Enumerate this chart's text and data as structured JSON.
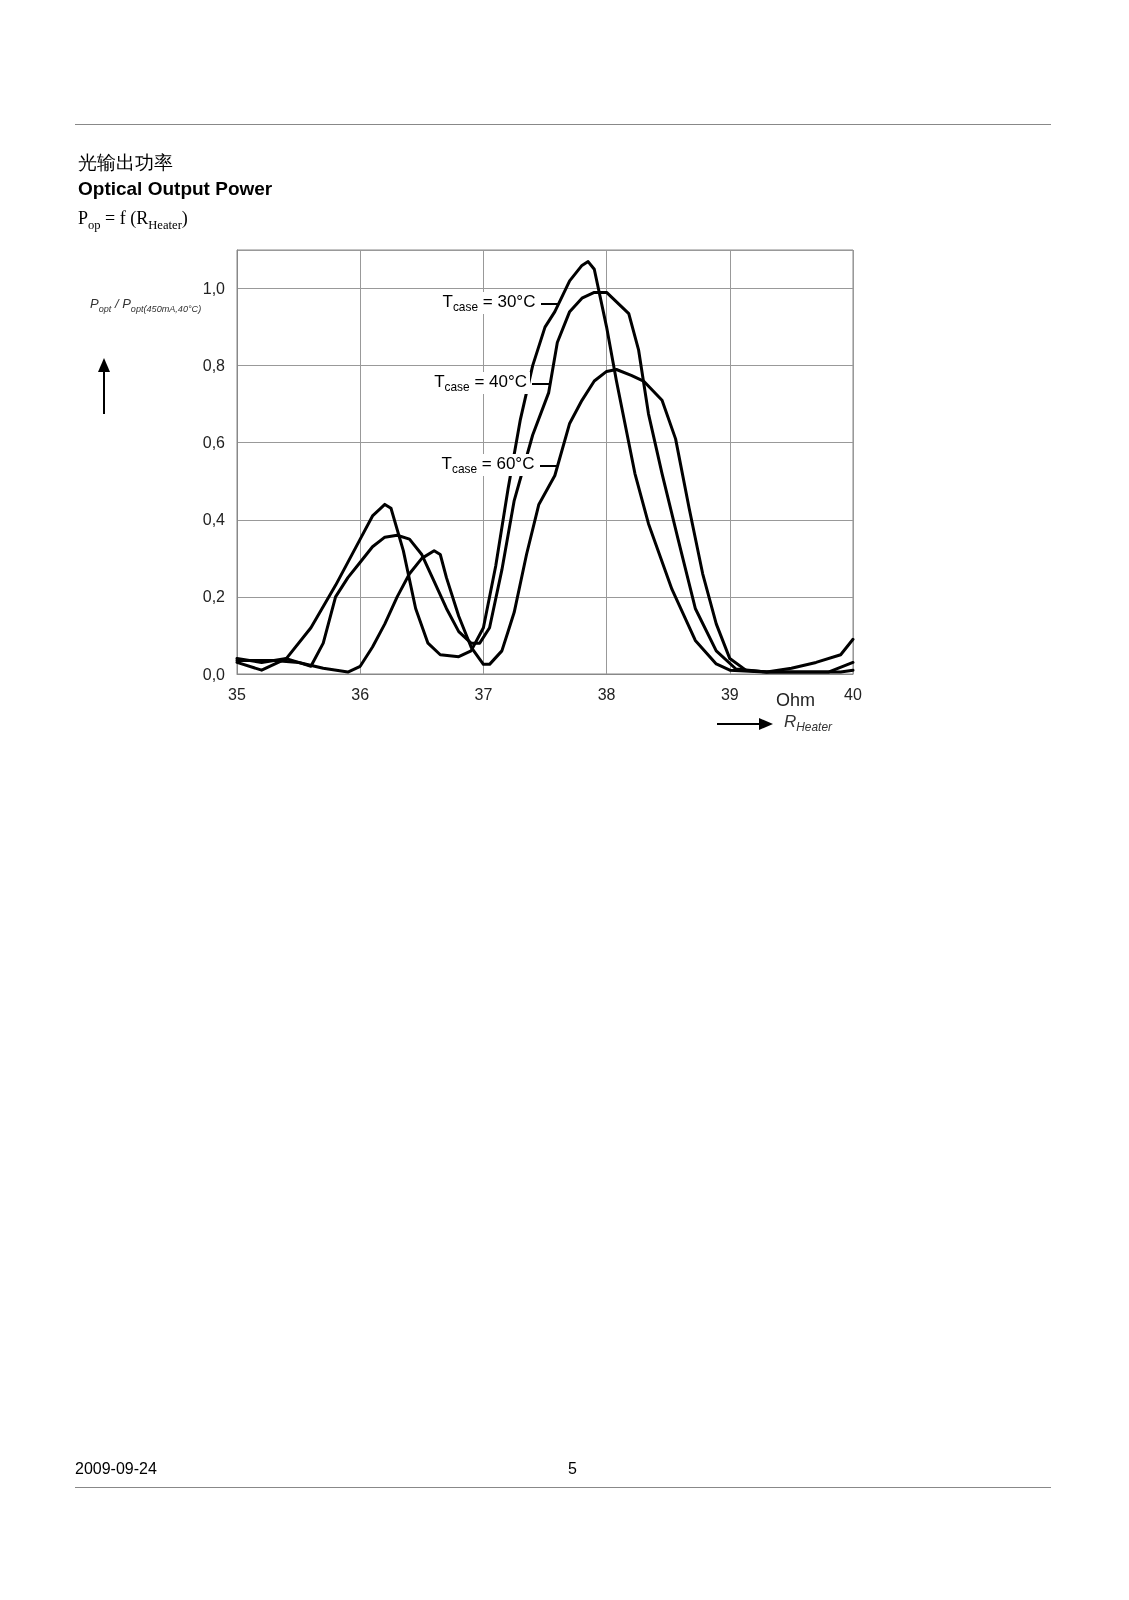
{
  "chart_data": {
    "type": "line",
    "title": "光输出功率",
    "subtitle": "Optical Output Power",
    "xlabel": "R$_{Heater}$",
    "ylabel": "P$_{opt}$ / P$_{opt(450mA,40°C)}$",
    "annotations": [
      "P$_{op}$ = f (R$_{Heater}$)",
      "Ohm",
      "2009-09-24",
      "5"
    ],
    "series": [
      {
        "name": "T$_{case}$ = 30°C",
        "color": "#000000",
        "x": [
          35.0,
          35.2,
          35.4,
          35.6,
          35.8,
          36.0,
          36.1,
          36.2,
          36.25,
          36.35,
          36.45,
          36.55,
          36.65,
          36.8,
          36.9,
          37.0,
          37.1,
          37.2,
          37.3,
          37.4,
          37.5,
          37.58,
          37.7,
          37.8,
          37.85,
          37.9,
          38.0,
          38.08,
          38.23,
          38.34,
          38.53,
          38.72,
          38.89,
          39.0,
          39.3,
          39.5,
          39.7,
          39.9,
          40.0
        ],
        "values": [
          0.03,
          0.01,
          0.04,
          0.12,
          0.23,
          0.35,
          0.41,
          0.44,
          0.43,
          0.32,
          0.17,
          0.08,
          0.05,
          0.045,
          0.06,
          0.12,
          0.28,
          0.48,
          0.66,
          0.8,
          0.9,
          0.94,
          1.02,
          1.06,
          1.07,
          1.05,
          0.9,
          0.76,
          0.52,
          0.39,
          0.22,
          0.087,
          0.026,
          0.01,
          0.005,
          0.015,
          0.03,
          0.05,
          0.09
        ]
      },
      {
        "name": "T$_{case}$ = 40°C",
        "color": "#000000",
        "x": [
          35.0,
          35.3,
          35.5,
          35.6,
          35.7,
          35.8,
          35.9,
          36.0,
          36.1,
          36.2,
          36.3,
          36.4,
          36.5,
          36.6,
          36.7,
          36.8,
          36.9,
          36.97,
          37.05,
          37.15,
          37.25,
          37.4,
          37.53,
          37.6,
          37.7,
          37.8,
          37.9,
          38.0,
          38.18,
          38.26,
          38.34,
          38.45,
          38.58,
          38.72,
          38.89,
          39.05,
          39.3,
          39.6,
          39.8,
          40.0
        ],
        "values": [
          0.035,
          0.035,
          0.03,
          0.02,
          0.08,
          0.2,
          0.25,
          0.29,
          0.33,
          0.355,
          0.36,
          0.35,
          0.31,
          0.24,
          0.17,
          0.11,
          0.08,
          0.08,
          0.12,
          0.27,
          0.45,
          0.62,
          0.73,
          0.86,
          0.94,
          0.975,
          0.99,
          0.99,
          0.935,
          0.84,
          0.675,
          0.52,
          0.35,
          0.17,
          0.06,
          0.013,
          0.005,
          0.005,
          0.005,
          0.03
        ]
      },
      {
        "name": "T$_{case}$ = 60°C",
        "color": "#000000",
        "x": [
          35.0,
          35.2,
          35.4,
          35.5,
          35.7,
          35.9,
          36.0,
          36.1,
          36.2,
          36.3,
          36.4,
          36.5,
          36.6,
          36.65,
          36.7,
          36.8,
          36.9,
          37.0,
          37.05,
          37.15,
          37.25,
          37.35,
          37.45,
          37.58,
          37.7,
          37.8,
          37.9,
          38.0,
          38.08,
          38.2,
          38.3,
          38.45,
          38.56,
          38.67,
          38.78,
          38.89,
          39.0,
          39.13,
          39.3,
          39.6,
          39.9,
          40.0
        ],
        "values": [
          0.04,
          0.03,
          0.04,
          0.03,
          0.015,
          0.005,
          0.02,
          0.07,
          0.13,
          0.2,
          0.26,
          0.3,
          0.32,
          0.31,
          0.25,
          0.15,
          0.07,
          0.025,
          0.025,
          0.06,
          0.16,
          0.31,
          0.44,
          0.515,
          0.65,
          0.71,
          0.76,
          0.785,
          0.79,
          0.775,
          0.76,
          0.71,
          0.61,
          0.43,
          0.26,
          0.13,
          0.04,
          0.01,
          0.005,
          0.005,
          0.005,
          0.01
        ]
      }
    ],
    "xlim": [
      35,
      40
    ],
    "xticks": [
      35,
      36,
      37,
      38,
      39,
      40
    ],
    "ylim": [
      0,
      1.1
    ],
    "yticks": [
      {
        "value": 0,
        "label": "0,0"
      },
      {
        "value": 0.2,
        "label": "0,2"
      },
      {
        "value": 0.4,
        "label": "0,4"
      },
      {
        "value": 0.6,
        "label": "0,6"
      },
      {
        "value": 0.8,
        "label": "0,8"
      },
      {
        "value": 1.0,
        "label": "1,0"
      }
    ],
    "grid": true,
    "legend": "top"
  }
}
